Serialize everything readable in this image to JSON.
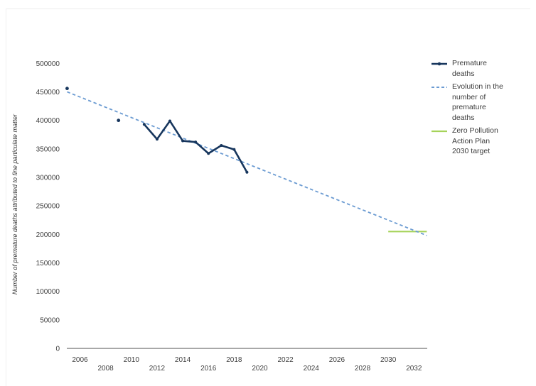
{
  "panel": {
    "background": "#ffffff",
    "border_color": "#ececec"
  },
  "chart_data": {
    "type": "line",
    "title": "",
    "xlabel": "",
    "ylabel": "Number of premature deaths attributed to fine particulate matter",
    "ylim": [
      0,
      500000
    ],
    "xlim": [
      2005,
      2033.5
    ],
    "grid": false,
    "legend_position": "right",
    "axis_color": "#8c8c8c",
    "tick_color": "#3f3f3f",
    "y_ticks": [
      0,
      50000,
      100000,
      150000,
      200000,
      250000,
      300000,
      350000,
      400000,
      450000,
      500000
    ],
    "x_ticks": [
      2006,
      2008,
      2010,
      2012,
      2014,
      2016,
      2018,
      2020,
      2022,
      2024,
      2026,
      2028,
      2030,
      2032
    ],
    "series": [
      {
        "name": "Premature deaths",
        "style": "solid-line-with-markers",
        "color": "#17365d",
        "isolated_points": [
          [
            2005,
            456000
          ],
          [
            2009,
            400000
          ]
        ],
        "line_points": [
          [
            2011,
            393000
          ],
          [
            2012,
            367000
          ],
          [
            2013,
            399000
          ],
          [
            2014,
            364000
          ],
          [
            2015,
            362000
          ],
          [
            2016,
            342000
          ],
          [
            2017,
            356000
          ],
          [
            2018,
            349000
          ],
          [
            2019,
            309000
          ]
        ]
      },
      {
        "name": "Evolution in the number of premature deaths",
        "style": "dashed-trend-line",
        "color": "#6b9bd2",
        "points": [
          [
            2005,
            450000
          ],
          [
            2033,
            198000
          ]
        ]
      },
      {
        "name": "Zero Pollution Action Plan 2030 target",
        "style": "solid-target-line",
        "color": "#a6d35a",
        "value": 205000,
        "span": [
          2030,
          2033
        ]
      }
    ]
  }
}
